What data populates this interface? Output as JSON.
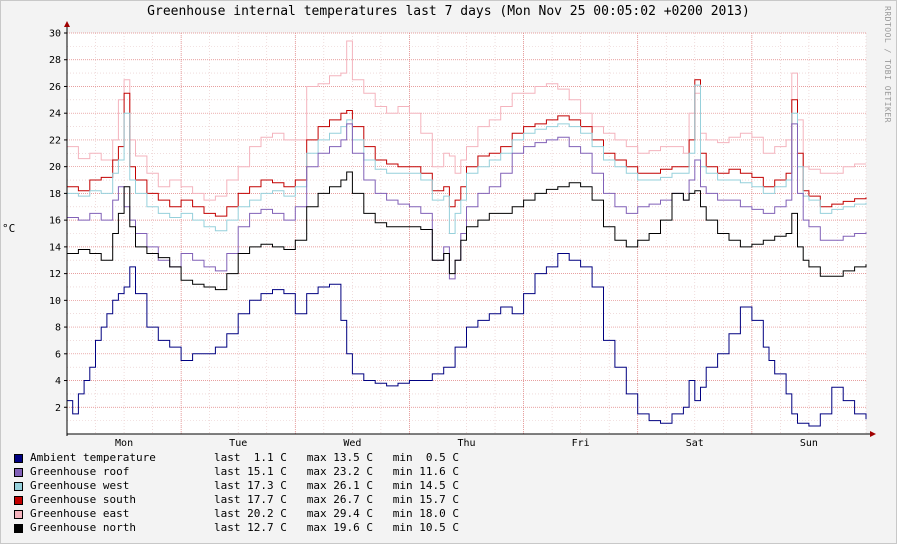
{
  "chart_data": {
    "type": "line",
    "title": "Greenhouse internal temperatures last 7 days (Mon Nov 25 00:05:02 +0200 2013)",
    "side_text": "RRDTOOL / TOBI OETIKER",
    "ylabel": "°C",
    "ylim": [
      0,
      30
    ],
    "yticks": [
      "2",
      "4",
      "6",
      "8",
      "10",
      "12",
      "14",
      "16",
      "18",
      "20",
      "22",
      "24",
      "26",
      "28",
      "30"
    ],
    "xlim": [
      0,
      7
    ],
    "days": [
      {
        "label": "Mon",
        "x": 0.5
      },
      {
        "label": "Tue",
        "x": 1.5
      },
      {
        "label": "Wed",
        "x": 2.5
      },
      {
        "label": "Thu",
        "x": 3.5
      },
      {
        "label": "Fri",
        "x": 4.5
      },
      {
        "label": "Sat",
        "x": 5.5
      },
      {
        "label": "Sun",
        "x": 6.5
      }
    ],
    "grid": true,
    "legend_position": "bottom-left",
    "series": [
      {
        "name": "Greenhouse east",
        "color": "#f4b3bd",
        "last": "20.2 C",
        "max": "29.4 C",
        "min": "18.0 C",
        "x": [
          0,
          0.1,
          0.2,
          0.3,
          0.4,
          0.45,
          0.5,
          0.55,
          0.6,
          0.7,
          0.8,
          0.9,
          1.0,
          1.1,
          1.2,
          1.3,
          1.4,
          1.5,
          1.6,
          1.7,
          1.8,
          1.9,
          2.0,
          2.1,
          2.2,
          2.3,
          2.4,
          2.45,
          2.5,
          2.6,
          2.7,
          2.8,
          2.9,
          3.0,
          3.1,
          3.2,
          3.3,
          3.35,
          3.4,
          3.45,
          3.5,
          3.6,
          3.7,
          3.8,
          3.9,
          4.0,
          4.1,
          4.2,
          4.3,
          4.4,
          4.5,
          4.6,
          4.7,
          4.8,
          4.9,
          5.0,
          5.1,
          5.2,
          5.3,
          5.4,
          5.45,
          5.5,
          5.55,
          5.6,
          5.7,
          5.8,
          5.9,
          6.0,
          6.1,
          6.2,
          6.3,
          6.35,
          6.4,
          6.45,
          6.5,
          6.6,
          6.7,
          6.8,
          6.9,
          7.0
        ],
        "y": [
          21.5,
          20.6,
          21.0,
          20.5,
          22.0,
          25.0,
          26.5,
          22.0,
          20.8,
          19.5,
          18.5,
          19.0,
          18.5,
          18.0,
          17.5,
          17.8,
          19.0,
          20.0,
          21.5,
          22.2,
          22.5,
          22.0,
          22.0,
          26.0,
          26.2,
          26.8,
          27.0,
          29.4,
          26.5,
          25.5,
          24.5,
          24.0,
          24.5,
          24.0,
          22.5,
          20.0,
          21.0,
          20.8,
          19.5,
          20.5,
          21.5,
          23.0,
          23.5,
          24.5,
          25.5,
          25.5,
          26.0,
          26.2,
          25.8,
          25.0,
          24.0,
          23.0,
          22.5,
          22.0,
          21.5,
          21.0,
          21.2,
          21.5,
          21.5,
          21.0,
          24.0,
          25.5,
          22.5,
          22.0,
          21.8,
          22.2,
          22.5,
          22.2,
          21.0,
          21.5,
          22.0,
          27.0,
          23.5,
          20.0,
          19.8,
          19.5,
          19.5,
          20.0,
          20.2,
          20.2
        ]
      },
      {
        "name": "Greenhouse south",
        "color": "#c20000",
        "last": "17.7 C",
        "max": "26.7 C",
        "min": "15.7 C",
        "x": [
          0,
          0.1,
          0.2,
          0.3,
          0.4,
          0.45,
          0.5,
          0.55,
          0.6,
          0.7,
          0.8,
          0.9,
          1.0,
          1.1,
          1.2,
          1.3,
          1.4,
          1.5,
          1.6,
          1.7,
          1.8,
          1.9,
          2.0,
          2.1,
          2.2,
          2.3,
          2.4,
          2.45,
          2.5,
          2.6,
          2.7,
          2.8,
          2.9,
          3.0,
          3.1,
          3.2,
          3.3,
          3.35,
          3.4,
          3.45,
          3.5,
          3.6,
          3.7,
          3.8,
          3.9,
          4.0,
          4.1,
          4.2,
          4.3,
          4.4,
          4.5,
          4.6,
          4.7,
          4.8,
          4.9,
          5.0,
          5.1,
          5.2,
          5.3,
          5.4,
          5.45,
          5.5,
          5.55,
          5.6,
          5.7,
          5.8,
          5.9,
          6.0,
          6.1,
          6.2,
          6.3,
          6.35,
          6.4,
          6.45,
          6.5,
          6.6,
          6.7,
          6.8,
          6.9,
          7.0
        ],
        "y": [
          18.5,
          18.2,
          19.0,
          19.2,
          20.5,
          21.5,
          25.5,
          20.0,
          19.0,
          18.0,
          17.5,
          17.0,
          17.5,
          17.0,
          16.5,
          16.3,
          17.0,
          18.0,
          18.5,
          19.0,
          18.8,
          18.5,
          19.0,
          22.0,
          23.0,
          23.5,
          24.0,
          24.2,
          23.0,
          21.5,
          20.5,
          20.2,
          20.0,
          20.0,
          19.5,
          18.2,
          18.5,
          17.0,
          17.5,
          18.5,
          20.0,
          20.8,
          21.0,
          21.5,
          22.5,
          23.0,
          23.2,
          23.5,
          23.8,
          23.5,
          23.0,
          22.0,
          21.0,
          20.5,
          20.0,
          19.5,
          19.5,
          19.8,
          20.0,
          20.0,
          22.0,
          26.5,
          21.0,
          20.0,
          19.5,
          19.8,
          19.5,
          19.2,
          18.5,
          19.0,
          19.5,
          25.0,
          21.0,
          18.2,
          17.8,
          17.0,
          17.2,
          17.4,
          17.6,
          17.7
        ]
      },
      {
        "name": "Greenhouse west",
        "color": "#96d0db",
        "last": "17.3 C",
        "max": "26.1 C",
        "min": "14.5 C",
        "x": [
          0,
          0.1,
          0.2,
          0.3,
          0.4,
          0.45,
          0.5,
          0.55,
          0.6,
          0.7,
          0.8,
          0.9,
          1.0,
          1.1,
          1.2,
          1.3,
          1.4,
          1.5,
          1.6,
          1.7,
          1.8,
          1.9,
          2.0,
          2.1,
          2.2,
          2.3,
          2.4,
          2.45,
          2.5,
          2.6,
          2.7,
          2.8,
          2.9,
          3.0,
          3.1,
          3.2,
          3.3,
          3.35,
          3.4,
          3.45,
          3.5,
          3.6,
          3.7,
          3.8,
          3.9,
          4.0,
          4.1,
          4.2,
          4.3,
          4.4,
          4.5,
          4.6,
          4.7,
          4.8,
          4.9,
          5.0,
          5.1,
          5.2,
          5.3,
          5.4,
          5.45,
          5.5,
          5.55,
          5.6,
          5.7,
          5.8,
          5.9,
          6.0,
          6.1,
          6.2,
          6.3,
          6.35,
          6.4,
          6.45,
          6.5,
          6.6,
          6.7,
          6.8,
          6.9,
          7.0
        ],
        "y": [
          18.0,
          17.8,
          18.2,
          18.0,
          19.5,
          20.5,
          24.0,
          19.0,
          18.0,
          17.0,
          16.5,
          16.2,
          16.5,
          16.0,
          15.5,
          15.2,
          16.0,
          17.0,
          17.5,
          18.0,
          18.2,
          17.8,
          18.5,
          21.0,
          22.0,
          22.5,
          23.0,
          23.5,
          22.0,
          20.5,
          19.8,
          19.5,
          19.5,
          19.5,
          19.0,
          17.5,
          17.8,
          15.0,
          16.5,
          17.5,
          19.5,
          20.0,
          20.5,
          21.0,
          22.0,
          22.5,
          22.8,
          23.0,
          23.2,
          23.0,
          22.5,
          21.5,
          20.5,
          20.0,
          19.5,
          19.0,
          19.0,
          19.2,
          19.5,
          19.5,
          21.0,
          26.1,
          20.0,
          19.5,
          19.0,
          19.0,
          18.8,
          18.5,
          18.0,
          18.5,
          19.0,
          24.0,
          20.0,
          17.8,
          17.5,
          16.5,
          16.8,
          17.0,
          17.2,
          17.3
        ]
      },
      {
        "name": "Greenhouse roof",
        "color": "#8160b7",
        "last": "15.1 C",
        "max": "23.2 C",
        "min": "11.6 C",
        "x": [
          0,
          0.1,
          0.2,
          0.3,
          0.4,
          0.45,
          0.5,
          0.55,
          0.6,
          0.7,
          0.8,
          0.9,
          1.0,
          1.1,
          1.2,
          1.3,
          1.4,
          1.5,
          1.6,
          1.7,
          1.8,
          1.9,
          2.0,
          2.1,
          2.2,
          2.3,
          2.4,
          2.45,
          2.5,
          2.6,
          2.7,
          2.8,
          2.9,
          3.0,
          3.1,
          3.2,
          3.3,
          3.35,
          3.4,
          3.45,
          3.5,
          3.6,
          3.7,
          3.8,
          3.9,
          4.0,
          4.1,
          4.2,
          4.3,
          4.4,
          4.5,
          4.6,
          4.7,
          4.8,
          4.9,
          5.0,
          5.1,
          5.2,
          5.3,
          5.4,
          5.45,
          5.5,
          5.55,
          5.6,
          5.7,
          5.8,
          5.9,
          6.0,
          6.1,
          6.2,
          6.3,
          6.35,
          6.4,
          6.45,
          6.5,
          6.6,
          6.7,
          6.8,
          6.9,
          7.0
        ],
        "y": [
          16.2,
          16.0,
          16.5,
          16.0,
          17.5,
          18.5,
          17.0,
          16.0,
          15.0,
          14.0,
          13.0,
          12.5,
          13.5,
          13.0,
          12.5,
          12.2,
          13.5,
          15.5,
          16.5,
          16.8,
          16.5,
          16.0,
          17.0,
          20.0,
          21.0,
          21.5,
          22.0,
          23.2,
          21.0,
          19.0,
          18.0,
          17.5,
          17.2,
          17.0,
          16.5,
          13.0,
          14.0,
          11.6,
          13.0,
          15.0,
          17.0,
          18.0,
          18.5,
          19.5,
          21.0,
          21.5,
          21.8,
          22.0,
          22.2,
          21.5,
          21.0,
          19.5,
          18.0,
          17.0,
          16.5,
          17.0,
          17.2,
          17.5,
          18.0,
          17.5,
          19.0,
          20.5,
          18.5,
          18.0,
          17.5,
          17.5,
          17.0,
          16.8,
          16.5,
          17.0,
          17.5,
          23.2,
          18.0,
          16.0,
          15.5,
          14.5,
          14.5,
          14.8,
          15.0,
          15.1
        ]
      },
      {
        "name": "Greenhouse north",
        "color": "#000000",
        "last": "12.7 C",
        "max": "19.6 C",
        "min": "10.5 C",
        "x": [
          0,
          0.1,
          0.2,
          0.3,
          0.4,
          0.45,
          0.5,
          0.55,
          0.6,
          0.7,
          0.8,
          0.9,
          1.0,
          1.1,
          1.2,
          1.3,
          1.4,
          1.5,
          1.6,
          1.7,
          1.8,
          1.9,
          2.0,
          2.1,
          2.2,
          2.3,
          2.4,
          2.45,
          2.5,
          2.6,
          2.7,
          2.8,
          2.9,
          3.0,
          3.1,
          3.2,
          3.3,
          3.35,
          3.4,
          3.45,
          3.5,
          3.6,
          3.7,
          3.8,
          3.9,
          4.0,
          4.1,
          4.2,
          4.3,
          4.4,
          4.5,
          4.6,
          4.7,
          4.8,
          4.9,
          5.0,
          5.1,
          5.2,
          5.3,
          5.4,
          5.45,
          5.5,
          5.55,
          5.6,
          5.7,
          5.8,
          5.9,
          6.0,
          6.1,
          6.2,
          6.3,
          6.35,
          6.4,
          6.45,
          6.5,
          6.6,
          6.7,
          6.8,
          6.9,
          7.0
        ],
        "y": [
          13.5,
          13.8,
          13.5,
          13.0,
          15.0,
          16.5,
          18.5,
          15.5,
          14.0,
          13.5,
          13.2,
          12.5,
          11.5,
          11.2,
          11.0,
          10.8,
          12.0,
          13.5,
          14.0,
          14.2,
          14.0,
          13.8,
          14.5,
          17.0,
          18.0,
          18.5,
          19.0,
          19.6,
          18.0,
          16.5,
          15.8,
          15.5,
          15.5,
          15.5,
          15.3,
          13.0,
          13.5,
          12.0,
          13.0,
          14.5,
          15.5,
          16.0,
          16.5,
          16.5,
          17.0,
          17.5,
          18.0,
          18.3,
          18.5,
          18.8,
          18.5,
          17.5,
          15.5,
          14.5,
          14.0,
          14.5,
          15.0,
          16.0,
          18.0,
          17.5,
          18.0,
          18.2,
          17.0,
          16.0,
          15.0,
          14.5,
          14.0,
          14.2,
          14.5,
          14.8,
          15.0,
          16.5,
          14.0,
          13.0,
          12.5,
          11.8,
          11.8,
          12.2,
          12.5,
          12.7
        ]
      },
      {
        "name": "Ambient temperature",
        "color": "#000080",
        "last": "1.1 C",
        "max": "13.5 C",
        "min": "0.5 C",
        "x": [
          0,
          0.05,
          0.1,
          0.15,
          0.2,
          0.25,
          0.3,
          0.35,
          0.4,
          0.45,
          0.5,
          0.55,
          0.6,
          0.7,
          0.8,
          0.9,
          1.0,
          1.1,
          1.2,
          1.3,
          1.4,
          1.5,
          1.6,
          1.7,
          1.8,
          1.9,
          2.0,
          2.1,
          2.2,
          2.3,
          2.4,
          2.45,
          2.5,
          2.6,
          2.7,
          2.8,
          2.9,
          3.0,
          3.1,
          3.2,
          3.3,
          3.4,
          3.5,
          3.6,
          3.7,
          3.8,
          3.9,
          4.0,
          4.1,
          4.2,
          4.3,
          4.4,
          4.5,
          4.6,
          4.7,
          4.8,
          4.9,
          5.0,
          5.1,
          5.2,
          5.3,
          5.4,
          5.45,
          5.5,
          5.55,
          5.6,
          5.7,
          5.8,
          5.9,
          6.0,
          6.1,
          6.15,
          6.2,
          6.3,
          6.35,
          6.4,
          6.5,
          6.6,
          6.7,
          6.8,
          6.9,
          7.0
        ],
        "y": [
          2.5,
          1.5,
          3.0,
          4.0,
          5.0,
          7.0,
          8.0,
          9.0,
          10.0,
          10.5,
          11.0,
          12.5,
          10.5,
          8.0,
          7.0,
          6.5,
          5.5,
          6.0,
          6.0,
          6.5,
          7.5,
          9.0,
          10.0,
          10.5,
          10.8,
          10.5,
          9.0,
          10.5,
          11.0,
          11.2,
          8.5,
          6.0,
          4.5,
          4.0,
          3.8,
          3.6,
          3.8,
          4.0,
          4.0,
          4.5,
          5.0,
          6.5,
          8.0,
          8.5,
          9.0,
          9.5,
          9.0,
          10.5,
          12.0,
          12.5,
          13.5,
          13.0,
          12.5,
          11.0,
          7.0,
          5.0,
          3.0,
          1.5,
          1.0,
          0.8,
          1.5,
          2.0,
          4.0,
          2.5,
          3.5,
          5.0,
          6.0,
          7.5,
          9.5,
          8.5,
          6.5,
          5.5,
          4.5,
          3.0,
          1.5,
          0.8,
          0.6,
          1.5,
          3.5,
          2.5,
          1.5,
          1.1
        ]
      }
    ]
  }
}
